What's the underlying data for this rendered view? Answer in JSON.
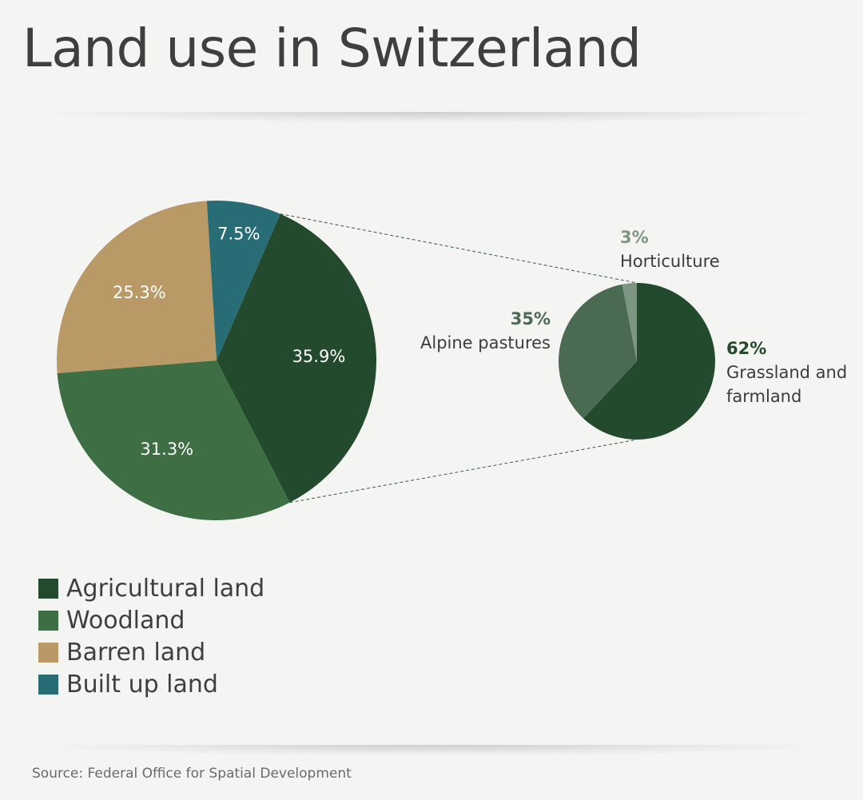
{
  "header": {
    "title": "Land use in Switzerland"
  },
  "source": "Source: Federal Office for Spatial Development",
  "colors": {
    "agricultural": "#234a2c",
    "woodland": "#3d6e44",
    "barren": "#b99a66",
    "built": "#286d75",
    "alpine": "#4a6a51",
    "horticulture": "#7d9583",
    "background": "#f4f4f2"
  },
  "chart_data": [
    {
      "type": "pie",
      "slices": [
        {
          "name": "Agricultural land",
          "value": 35.9,
          "label": "35.9%",
          "color": "#234a2c"
        },
        {
          "name": "Woodland",
          "value": 31.3,
          "label": "31.3%",
          "color": "#3d6e44"
        },
        {
          "name": "Barren land",
          "value": 25.3,
          "label": "25.3%",
          "color": "#b99a66"
        },
        {
          "name": "Built up land",
          "value": 7.5,
          "label": "7.5%",
          "color": "#286d75"
        }
      ],
      "legend": "bottom-left"
    },
    {
      "type": "pie",
      "parent_slice": "Agricultural land",
      "slices": [
        {
          "name": "Grassland and farmland",
          "value": 62,
          "label": "62%",
          "color": "#234a2c"
        },
        {
          "name": "Alpine pastures",
          "value": 35,
          "label": "35%",
          "color": "#4a6a51"
        },
        {
          "name": "Horticulture",
          "value": 3,
          "label": "3%",
          "color": "#7d9583"
        }
      ]
    }
  ]
}
